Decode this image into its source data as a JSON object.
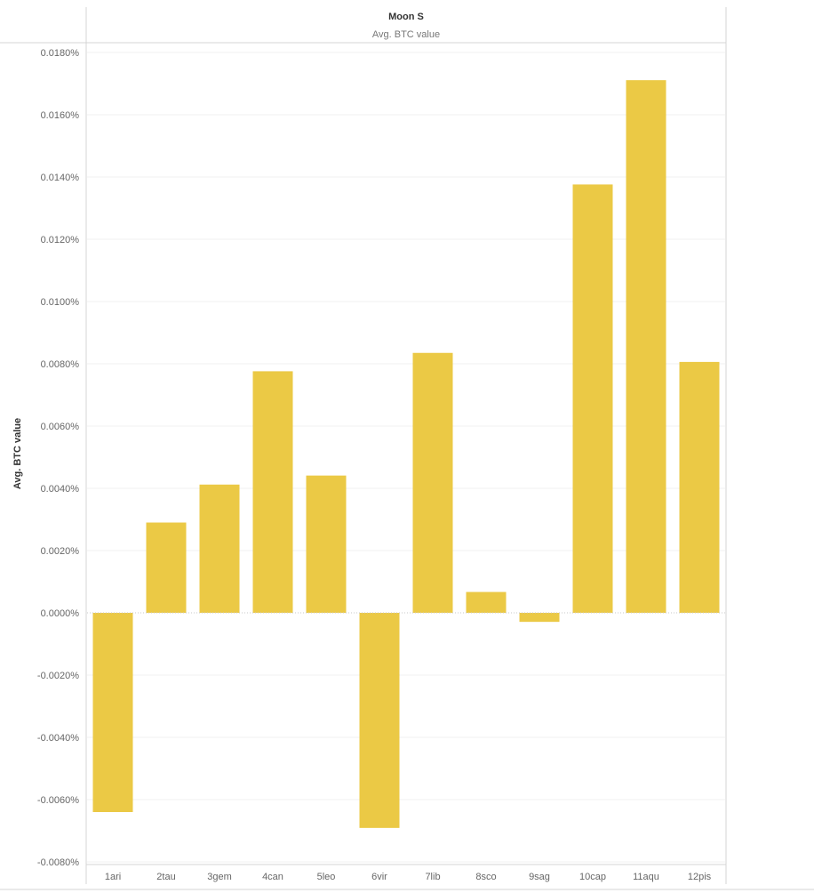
{
  "chart_data": {
    "type": "bar",
    "title": "Moon S",
    "subtitle": "Avg. BTC value",
    "ylabel": "Avg. BTC value",
    "xlabel": "",
    "categories": [
      "1ari",
      "2tau",
      "3gem",
      "4can",
      "5leo",
      "6vir",
      "7lib",
      "8sco",
      "9sag",
      "10cap",
      "11aqu",
      "12pis"
    ],
    "values": [
      -0.0064,
      0.0029,
      0.00412,
      0.00776,
      0.00441,
      -0.00691,
      0.00835,
      0.00067,
      -0.00029,
      0.01376,
      0.01711,
      0.00806
    ],
    "value_unit": "%",
    "ylim": [
      -0.0081,
      0.0185
    ],
    "yticks": [
      -0.008,
      -0.006,
      -0.004,
      -0.002,
      0.0,
      0.002,
      0.004,
      0.006,
      0.008,
      0.01,
      0.012,
      0.014,
      0.016,
      0.018
    ],
    "ytick_labels": [
      "-0.0080%",
      "-0.0060%",
      "-0.0040%",
      "-0.0020%",
      "0.0000%",
      "0.0020%",
      "0.0040%",
      "0.0060%",
      "0.0080%",
      "0.0100%",
      "0.0120%",
      "0.0140%",
      "0.0160%",
      "0.0180%"
    ],
    "grid": true,
    "legend": "none",
    "bar_color": "#EBC945",
    "gridline_color": "#F0F0F0",
    "zero_line_color": "#C8C8C8"
  }
}
